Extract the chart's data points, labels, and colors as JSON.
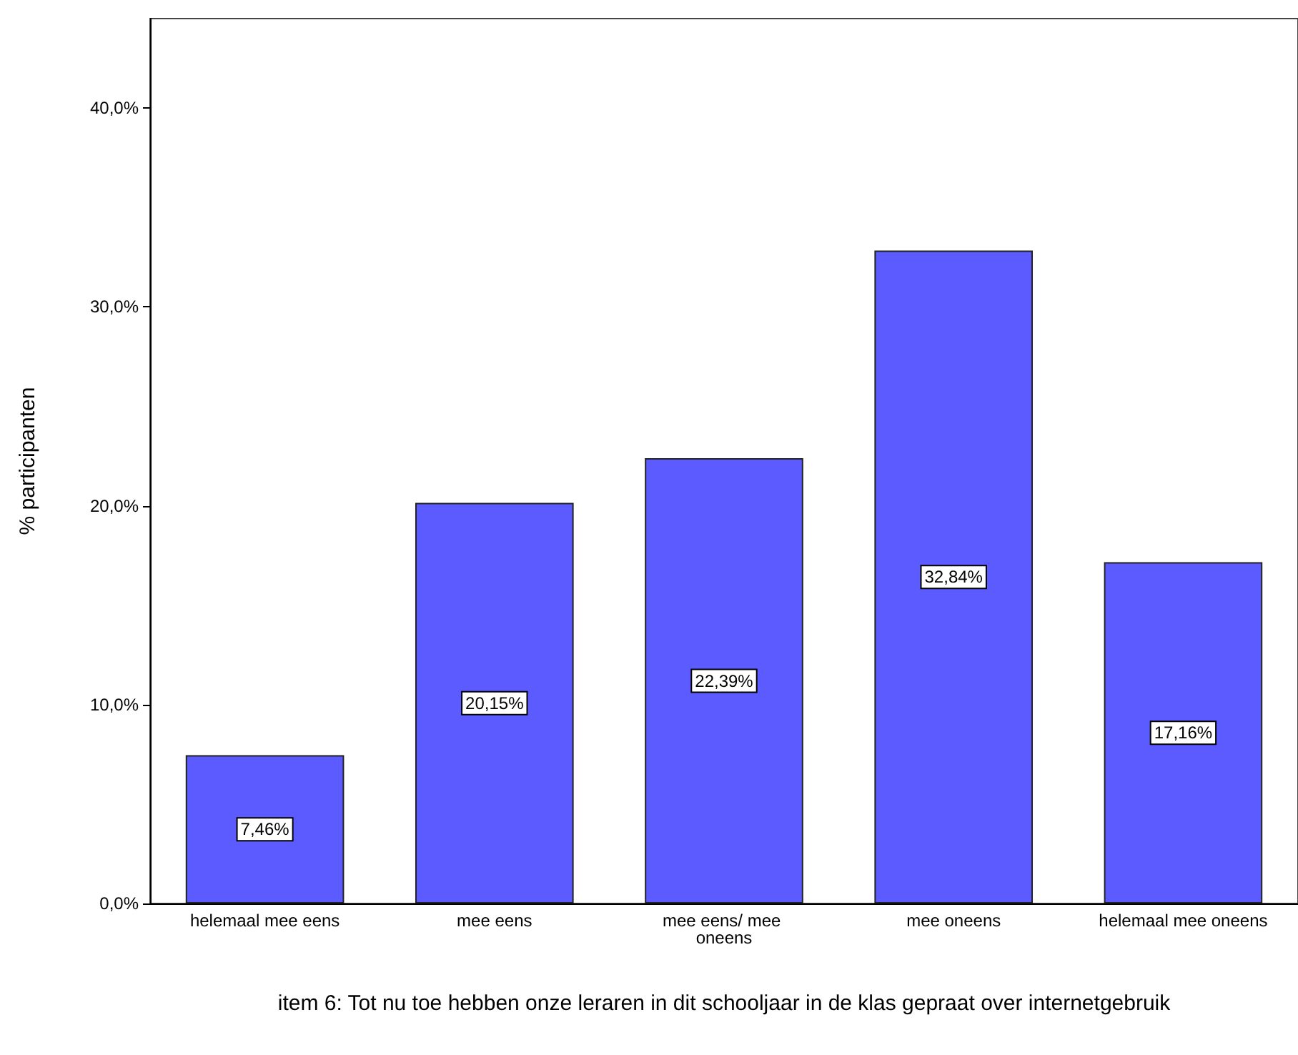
{
  "chart_data": {
    "type": "bar",
    "xlabel": "item 6: Tot nu toe hebben onze leraren in dit schooljaar in de klas gepraat over internetgebruik",
    "ylabel": "% participanten",
    "categories": [
      "helemaal mee eens",
      "mee eens",
      "mee eens/ mee oneens",
      "mee oneens",
      "helemaal mee oneens"
    ],
    "values": [
      7.46,
      20.15,
      22.39,
      32.84,
      17.16
    ],
    "value_labels": [
      "7,46%",
      "20,15%",
      "22,39%",
      "32,84%",
      "17,16%"
    ],
    "color": "#5b5bff",
    "ylim": [
      0,
      44.5
    ],
    "yticks": [
      {
        "value": 0,
        "label": "0,0%"
      },
      {
        "value": 10,
        "label": "10,0%"
      },
      {
        "value": 20,
        "label": "20,0%"
      },
      {
        "value": 30,
        "label": "30,0%"
      },
      {
        "value": 40,
        "label": "40,0%"
      }
    ],
    "grid": false
  }
}
